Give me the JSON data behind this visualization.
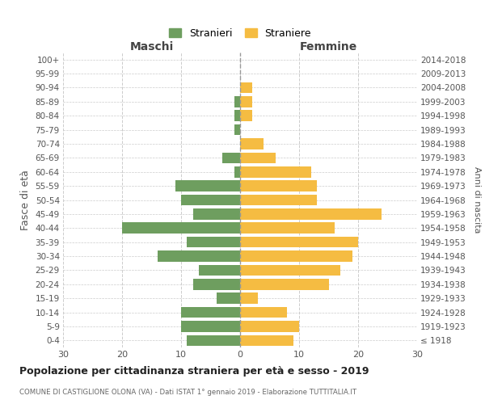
{
  "age_groups": [
    "100+",
    "95-99",
    "90-94",
    "85-89",
    "80-84",
    "75-79",
    "70-74",
    "65-69",
    "60-64",
    "55-59",
    "50-54",
    "45-49",
    "40-44",
    "35-39",
    "30-34",
    "25-29",
    "20-24",
    "15-19",
    "10-14",
    "5-9",
    "0-4"
  ],
  "birth_years": [
    "≤ 1918",
    "1919-1923",
    "1924-1928",
    "1929-1933",
    "1934-1938",
    "1939-1943",
    "1944-1948",
    "1949-1953",
    "1954-1958",
    "1959-1963",
    "1964-1968",
    "1969-1973",
    "1974-1978",
    "1979-1983",
    "1984-1988",
    "1989-1993",
    "1994-1998",
    "1999-2003",
    "2004-2008",
    "2009-2013",
    "2014-2018"
  ],
  "maschi": [
    0,
    0,
    0,
    1,
    1,
    1,
    0,
    3,
    1,
    11,
    10,
    8,
    20,
    9,
    14,
    7,
    8,
    4,
    10,
    10,
    9
  ],
  "femmine": [
    0,
    0,
    2,
    2,
    2,
    0,
    4,
    6,
    12,
    13,
    13,
    24,
    16,
    20,
    19,
    17,
    15,
    3,
    8,
    10,
    9
  ],
  "color_maschi": "#6e9e5f",
  "color_femmine": "#f5bc42",
  "title": "Popolazione per cittadinanza straniera per età e sesso - 2019",
  "subtitle": "COMUNE DI CASTIGLIONE OLONA (VA) - Dati ISTAT 1° gennaio 2019 - Elaborazione TUTTITALIA.IT",
  "ylabel_left": "Fasce di età",
  "ylabel_right": "Anni di nascita",
  "xlabel_left": "Maschi",
  "xlabel_right": "Femmine",
  "xlim": 30,
  "legend_maschi": "Stranieri",
  "legend_femmine": "Straniere",
  "background_color": "#ffffff",
  "grid_color": "#cccccc"
}
